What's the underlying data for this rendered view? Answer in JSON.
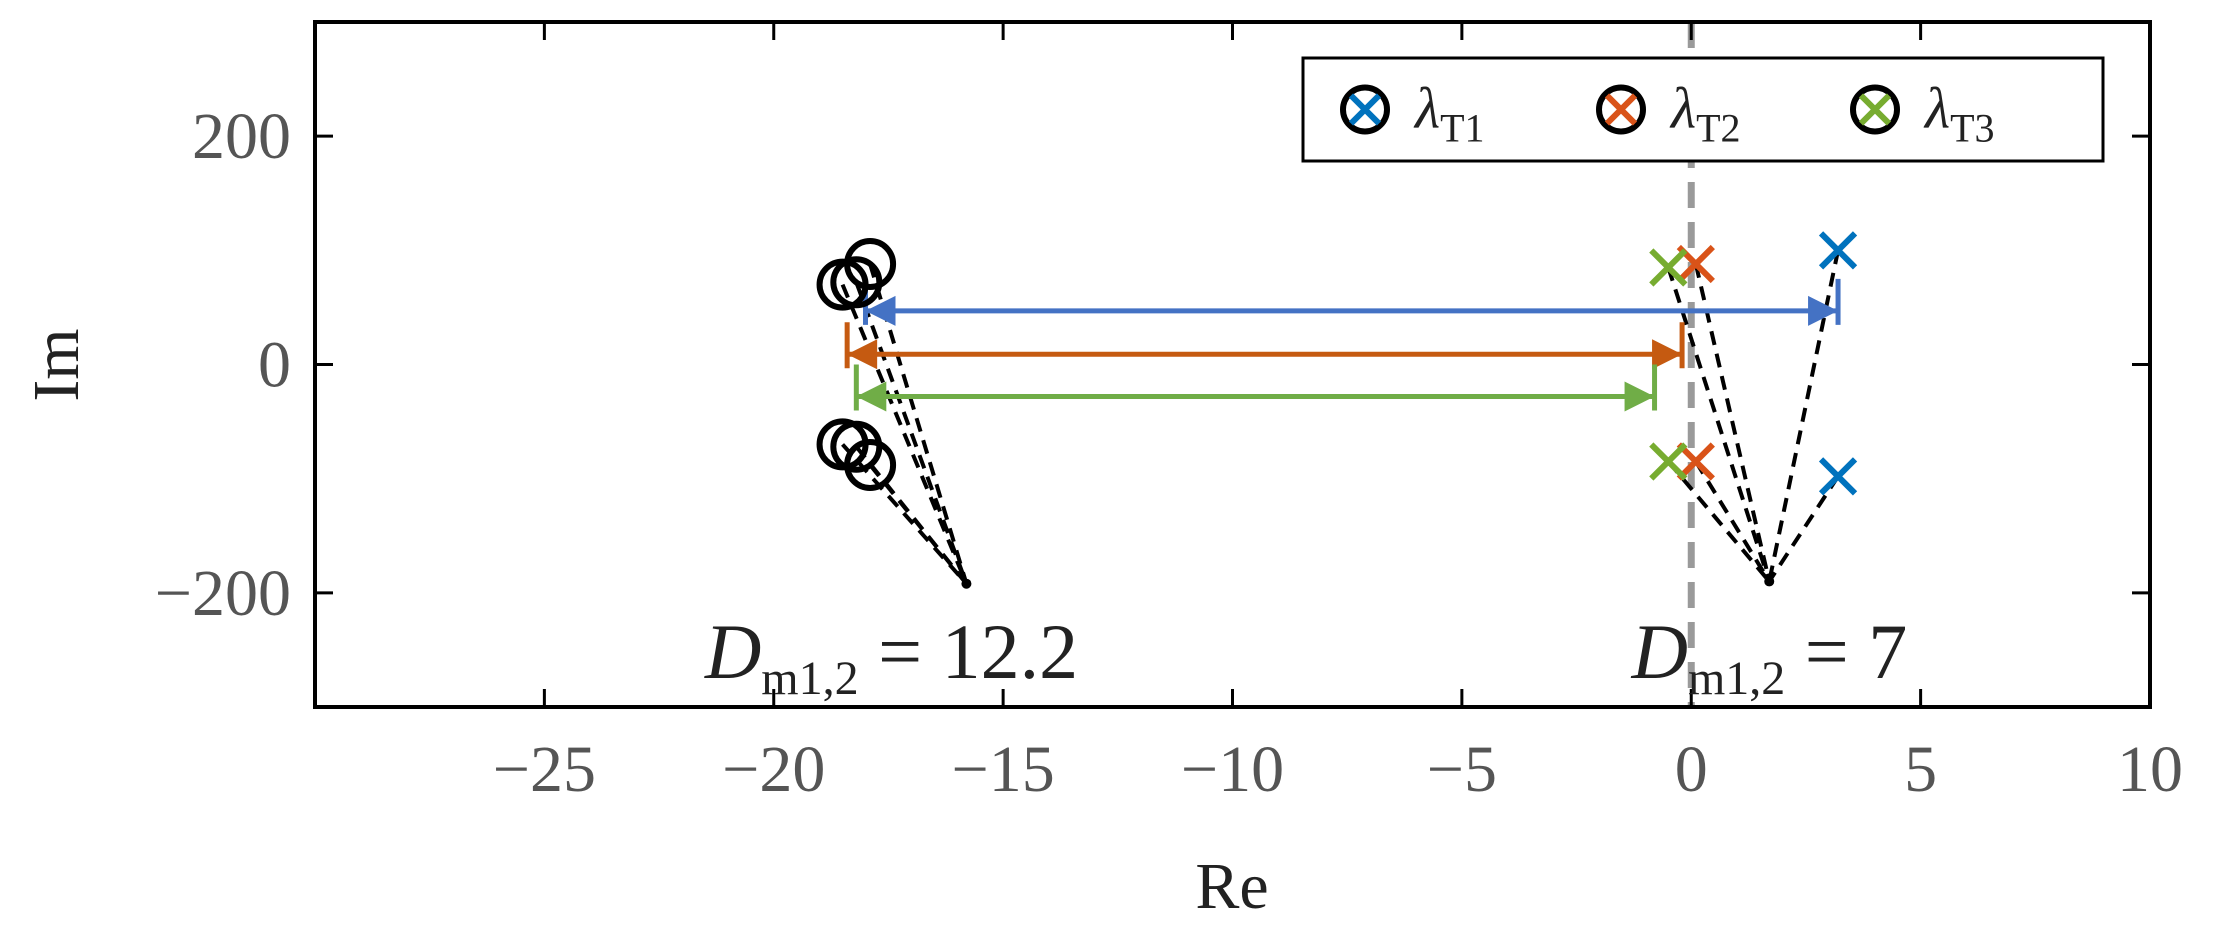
{
  "chart_data": {
    "type": "scatter",
    "xlabel": "Re",
    "ylabel": "Im",
    "xlim": [
      -30,
      10
    ],
    "ylim": [
      -300,
      300
    ],
    "x_ticks": [
      -25,
      -20,
      -15,
      -10,
      -5,
      0,
      5,
      10
    ],
    "y_ticks": [
      -200,
      0,
      200
    ],
    "x_tick_labels": [
      "−25",
      "−20",
      "−15",
      "−10",
      "−5",
      "0",
      "5",
      "10"
    ],
    "y_tick_labels": [
      "−200",
      "0",
      "200"
    ],
    "grid": false,
    "legend_position": "top-right",
    "zero_line": {
      "x": 0,
      "style": "dashed",
      "color": "#9a9a9a"
    },
    "series": [
      {
        "name": "λT1",
        "legend_main": "λ",
        "legend_sub": "T1",
        "color": "#0072BD",
        "after_points": [
          [
            3.2,
            100
          ],
          [
            3.2,
            -98
          ]
        ],
        "before_points": [
          [
            -17.9,
            88
          ],
          [
            -17.9,
            -88
          ]
        ]
      },
      {
        "name": "λT2",
        "legend_main": "λ",
        "legend_sub": "T2",
        "color": "#D95319",
        "after_points": [
          [
            0.1,
            88
          ],
          [
            0.1,
            -85
          ]
        ],
        "before_points": [
          [
            -18.2,
            72
          ],
          [
            -18.2,
            -72
          ]
        ]
      },
      {
        "name": "λT3",
        "legend_main": "λ",
        "legend_sub": "T3",
        "color": "#77AC30",
        "after_points": [
          [
            -0.5,
            85
          ],
          [
            -0.5,
            -85
          ]
        ],
        "before_points": [
          [
            -18.5,
            70
          ],
          [
            -18.5,
            -70
          ]
        ]
      }
    ],
    "shift_arrows": [
      {
        "series": "λT1",
        "color": "#4472C4",
        "from": -18.0,
        "to": 3.2,
        "y": 47
      },
      {
        "series": "λT2",
        "color": "#C55A11",
        "from": -18.4,
        "to": -0.2,
        "y": 9
      },
      {
        "series": "λT3",
        "color": "#70AD47",
        "from": -18.2,
        "to": -0.8,
        "y": -28
      }
    ],
    "annotations": [
      {
        "main": "D",
        "sub": "m1,2",
        "rest": " = 12.2",
        "anchor_x": -21.5,
        "anchor_y": -250,
        "tip": [
          -15.8,
          -192
        ]
      },
      {
        "main": "D",
        "sub": "m1,2",
        "rest": " = 7",
        "anchor_x": -1.3,
        "anchor_y": -250,
        "tip": [
          1.7,
          -190
        ]
      }
    ]
  }
}
